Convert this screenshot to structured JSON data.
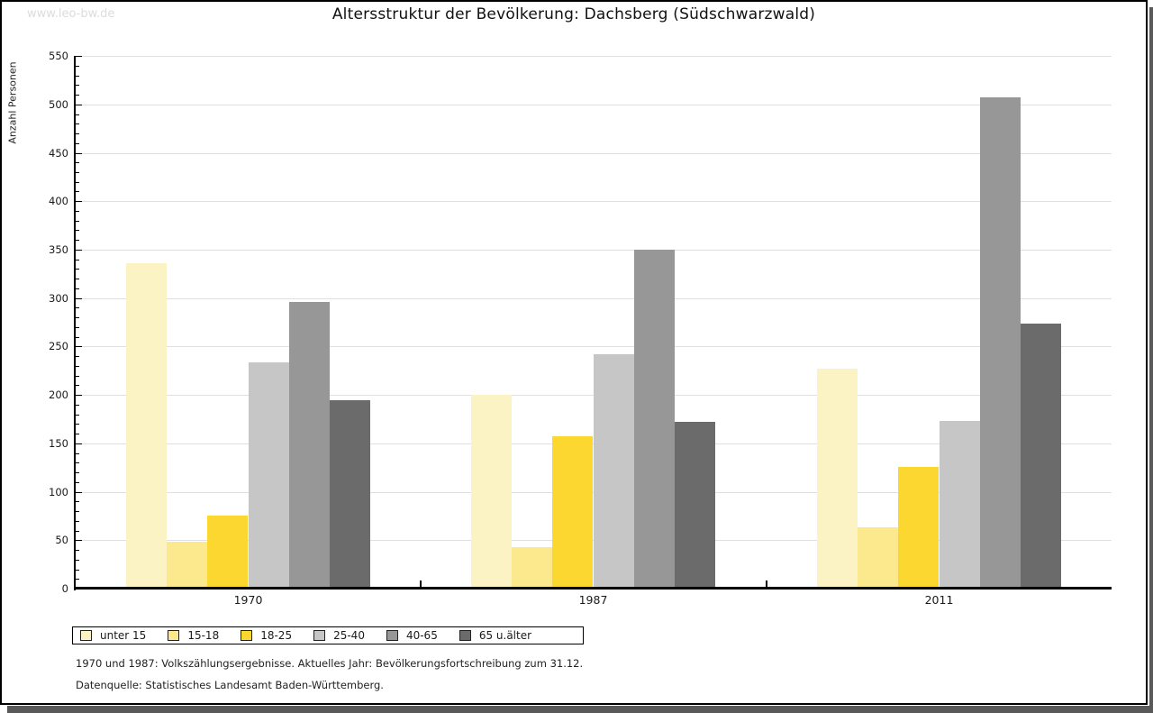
{
  "watermark": "www.leo-bw.de",
  "title": "Altersstruktur der Bevölkerung: Dachsberg (Südschwarzwald)",
  "footnotes": {
    "line1": "1970 und 1987: Volkszählungsergebnisse. Aktuelles Jahr: Bevölkerungsfortschreibung zum 31.12.",
    "line2": "Datenquelle: Statistisches Landesamt Baden-Württemberg."
  },
  "colors": {
    "grid": "#e0e0e0",
    "axis": "#000000",
    "frame_shadow": "#595959",
    "watermark": "#dcdcdc"
  },
  "chart_data": {
    "type": "bar",
    "title": "Altersstruktur der Bevölkerung: Dachsberg (Südschwarzwald)",
    "xlabel": "",
    "ylabel": "Anzahl Personen",
    "ylim": [
      0,
      550
    ],
    "ytick_step": 50,
    "y_minor_tick_step": 10,
    "grid": true,
    "legend_position": "bottom",
    "categories": [
      "1970",
      "1987",
      "2011"
    ],
    "series": [
      {
        "name": "unter 15",
        "color": "#FBF3C3",
        "values": [
          336,
          200,
          227
        ]
      },
      {
        "name": "15-18",
        "color": "#FDE98D",
        "values": [
          48,
          43,
          63
        ]
      },
      {
        "name": "18-25",
        "color": "#FCD72F",
        "values": [
          75,
          157,
          126
        ]
      },
      {
        "name": "25-40",
        "color": "#C6C6C6",
        "values": [
          234,
          242,
          173
        ]
      },
      {
        "name": "40-65",
        "color": "#979797",
        "values": [
          296,
          350,
          507
        ]
      },
      {
        "name": "65 u.älter",
        "color": "#6B6B6B",
        "values": [
          195,
          172,
          274
        ]
      }
    ]
  }
}
